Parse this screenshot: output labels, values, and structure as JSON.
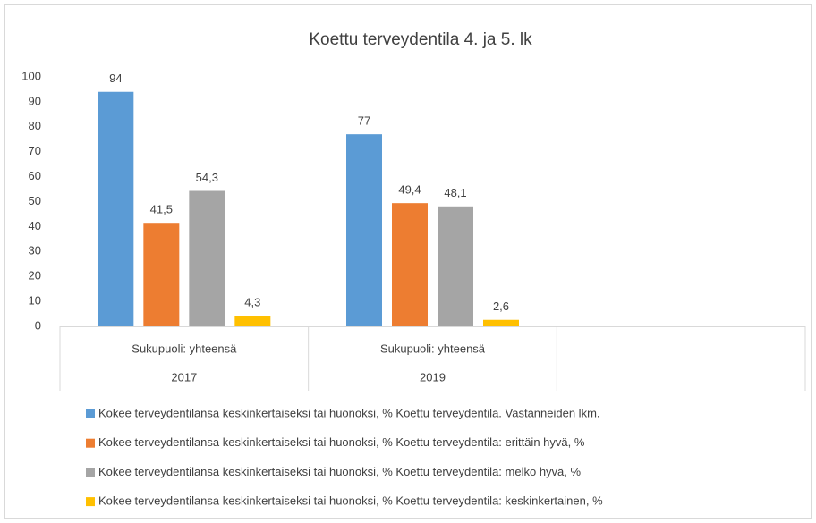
{
  "chart_data": {
    "type": "bar",
    "title": "Koettu terveydentila 4. ja 5. lk",
    "categories": [
      "Sukupuoli: yhteensä",
      "Sukupuoli: yhteensä",
      null
    ],
    "category_groups": [
      "2017",
      "2019",
      null
    ],
    "series": [
      {
        "name": "Kokee terveydentilansa keskinkertaiseksi tai huonoksi, % Koettu terveydentila. Vastanneiden lkm.",
        "color": "#5b9bd5",
        "values": [
          94,
          77,
          null
        ]
      },
      {
        "name": "Kokee terveydentilansa keskinkertaiseksi tai huonoksi, % Koettu terveydentila: erittäin hyvä, %",
        "color": "#ed7d31",
        "values": [
          41.5,
          49.4,
          null
        ],
        "value_labels": [
          "41,5",
          "49,4",
          null
        ]
      },
      {
        "name": "Kokee terveydentilansa keskinkertaiseksi tai huonoksi, % Koettu terveydentila: melko hyvä, %",
        "color": "#a5a5a5",
        "values": [
          54.3,
          48.1,
          null
        ],
        "value_labels": [
          "54,3",
          "48,1",
          null
        ]
      },
      {
        "name": "Kokee terveydentilansa keskinkertaiseksi tai huonoksi, % Koettu terveydentila: keskinkertainen, %",
        "color": "#ffc000",
        "values": [
          4.3,
          2.6,
          null
        ],
        "value_labels": [
          "4,3",
          "2,6",
          null
        ]
      }
    ],
    "ylim": [
      0,
      100
    ],
    "yticks": [
      0,
      10,
      20,
      30,
      40,
      50,
      60,
      70,
      80,
      90,
      100
    ],
    "grid": false
  }
}
